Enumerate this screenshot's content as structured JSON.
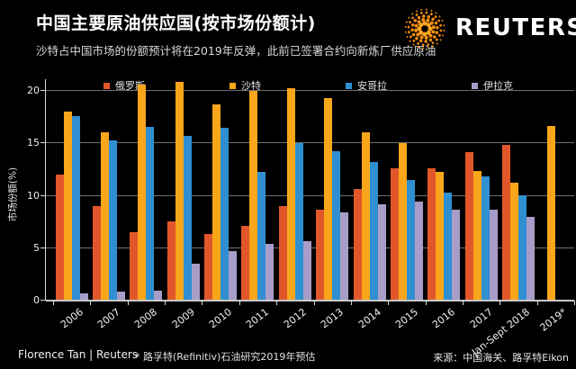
{
  "header": {
    "title": "中国主要原油供应国(按市场份额计)",
    "subtitle": "沙特占中国市场的份额预计将在2019年反弹，此前已签署合约向新炼厂供应原油",
    "brand": "REUTERS",
    "logo_color": "#F28B10"
  },
  "chart_data": {
    "type": "bar",
    "title": "中国主要原油供应国(按市场份额计)",
    "xlabel": "",
    "ylabel": "市场份额(%)",
    "ylim": [
      0,
      20
    ],
    "yticks": [
      0,
      5,
      10,
      15,
      20
    ],
    "grid": true,
    "legend_position": "top",
    "categories": [
      "2006",
      "2007",
      "2008",
      "2009",
      "2010",
      "2011",
      "2012",
      "2013",
      "2014",
      "2015",
      "2016",
      "2017",
      "Jan-Sept 2018",
      "2019*"
    ],
    "series": [
      {
        "name": "俄罗斯",
        "color": "#E2572A",
        "values": [
          11.9,
          8.9,
          6.4,
          7.5,
          6.3,
          7.0,
          8.9,
          8.6,
          10.6,
          12.5,
          12.5,
          14.1,
          14.8,
          null
        ]
      },
      {
        "name": "沙特",
        "color": "#F9A61B",
        "values": [
          17.9,
          16.0,
          20.5,
          20.8,
          18.6,
          19.9,
          20.2,
          19.2,
          16.0,
          14.9,
          12.2,
          12.3,
          11.2,
          16.6
        ]
      },
      {
        "name": "安哥拉",
        "color": "#2F8FD0",
        "values": [
          17.5,
          15.2,
          16.5,
          15.6,
          16.4,
          12.2,
          14.9,
          14.2,
          13.1,
          11.4,
          10.2,
          11.8,
          10.0,
          null
        ]
      },
      {
        "name": "伊拉克",
        "color": "#A89DC9",
        "values": [
          0.6,
          0.8,
          0.9,
          3.4,
          4.6,
          5.3,
          5.6,
          8.3,
          9.1,
          9.4,
          8.6,
          8.6,
          7.9,
          null
        ]
      }
    ]
  },
  "footer": {
    "credit": "Florence Tan | Reuters",
    "footnote": "* 路孚特(Refinitiv)石油研究2019年预估",
    "source": "来源：中国海关、路孚特Eikon"
  }
}
